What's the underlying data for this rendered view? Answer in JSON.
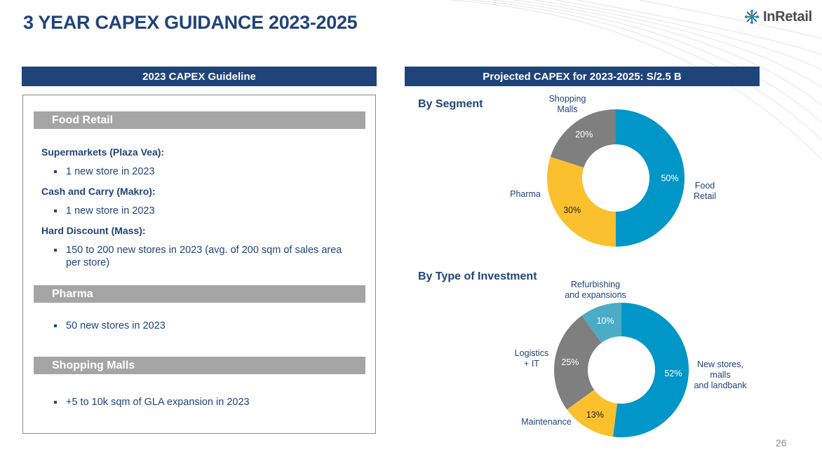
{
  "header": {
    "title": "3 YEAR CAPEX GUIDANCE 2023-2025",
    "logo_text": "InRetail",
    "logo_icon": "snowflake-network-icon"
  },
  "left_panel": {
    "title": "2023 CAPEX Guideline",
    "sections": [
      {
        "heading": "Food Retail",
        "groups": [
          {
            "subheading": "Supermarkets (Plaza Vea):",
            "bullets": [
              "1 new store in 2023"
            ]
          },
          {
            "subheading": "Cash and Carry (Makro):",
            "bullets": [
              "1 new store in 2023"
            ]
          },
          {
            "subheading": "Hard Discount (Mass):",
            "bullets": [
              "150 to 200 new stores in 2023 (avg. of 200 sqm of sales area per store)"
            ]
          }
        ]
      },
      {
        "heading": "Pharma",
        "bullets": [
          "50 new stores in 2023"
        ]
      },
      {
        "heading": "Shopping Malls",
        "bullets": [
          "+5 to 10k sqm of GLA expansion in 2023"
        ]
      }
    ]
  },
  "right_panel": {
    "title": "Projected CAPEX for 2023-2025: S/2.5 B"
  },
  "chart_data": [
    {
      "type": "pie",
      "donut": true,
      "title": "By Segment",
      "categories": [
        "Food Retail",
        "Pharma",
        "Shopping Malls"
      ],
      "display_labels": [
        [
          "Food",
          "Retail"
        ],
        [
          "Pharma"
        ],
        [
          "Shopping",
          "Malls"
        ]
      ],
      "values": [
        50,
        30,
        20
      ],
      "value_labels": [
        "50%",
        "30%",
        "20%"
      ],
      "colors": [
        "#0096c7",
        "#fbc02d",
        "#7f7f7f"
      ],
      "value_label_colors": [
        "#ffffff",
        "#222222",
        "#ffffff"
      ]
    },
    {
      "type": "pie",
      "donut": true,
      "title": "By Type of Investment",
      "categories": [
        "New stores, malls and landbank",
        "Maintenance",
        "Logistics + IT",
        "Refurbishing and expansions"
      ],
      "display_labels": [
        [
          "New stores,",
          "malls",
          "and landbank"
        ],
        [
          "Maintenance"
        ],
        [
          "Logistics",
          "+ IT"
        ],
        [
          "Refurbishing",
          "and expansions"
        ]
      ],
      "values": [
        52,
        13,
        25,
        10
      ],
      "value_labels": [
        "52%",
        "13%",
        "25%",
        "10%"
      ],
      "colors": [
        "#0096c7",
        "#fbc02d",
        "#7f7f7f",
        "#4bacc6"
      ],
      "value_label_colors": [
        "#ffffff",
        "#222222",
        "#ffffff",
        "#ffffff"
      ]
    }
  ],
  "footer": {
    "page_number": "26"
  }
}
